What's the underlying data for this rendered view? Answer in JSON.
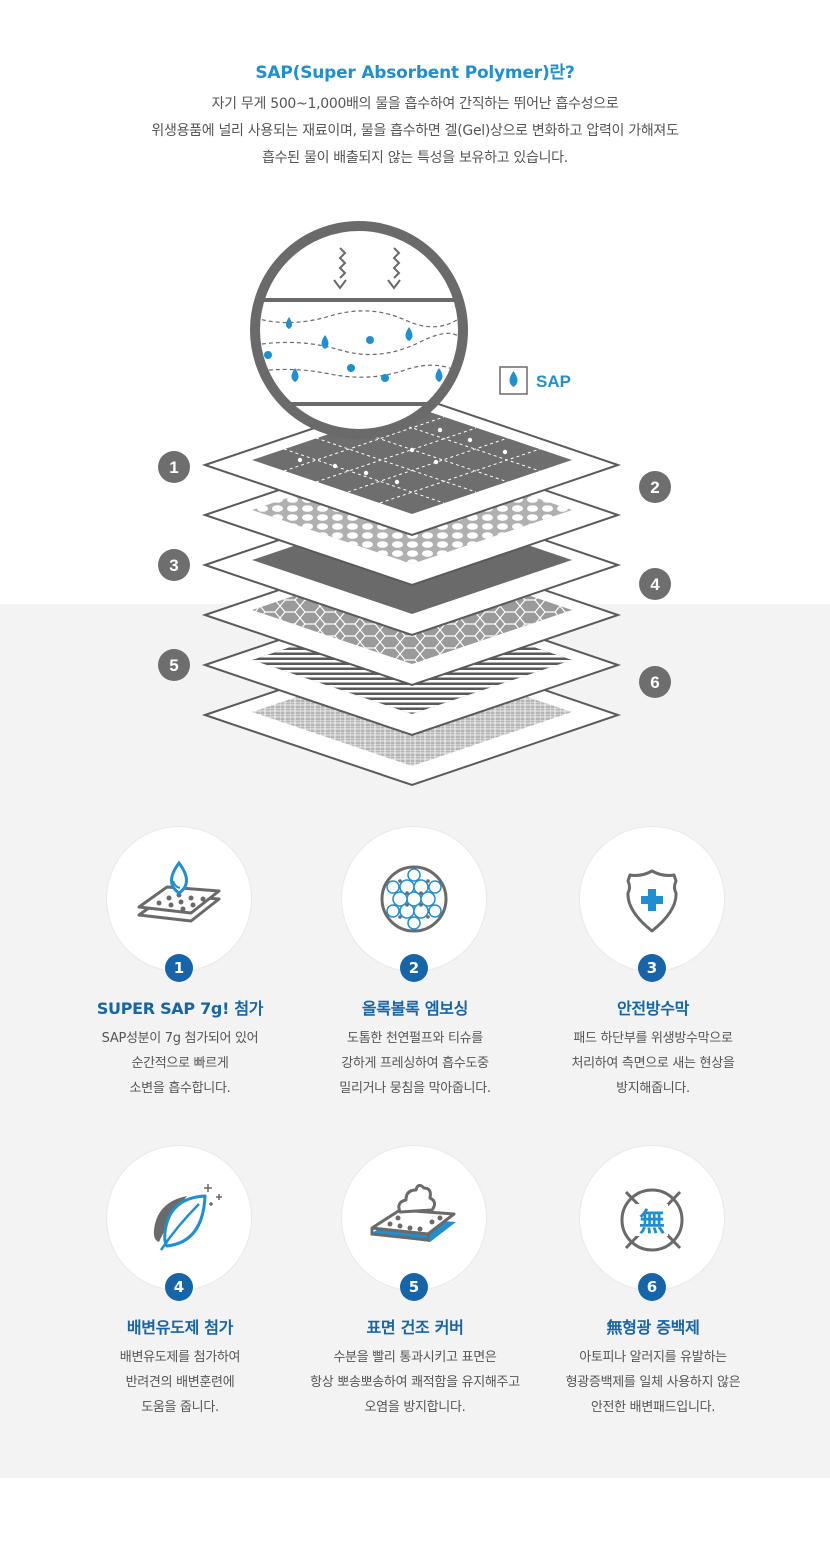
{
  "intro": {
    "title": "SAP(Super Absorbent Polymer)란?",
    "lines": [
      "자기 무게 500~1,000배의 물을 흡수하여 간직하는 뛰어난 흡수성으로",
      "위생용품에 널리 사용되는 재료이며, 물을 흡수하면 겔(Gel)상으로 변화하고 압력이 가해져도",
      "흡수된 물이 배출되지 않는 특성을 보유하고 있습니다."
    ]
  },
  "diagram": {
    "legend_label": "SAP",
    "layer_numbers": [
      "1",
      "2",
      "3",
      "4",
      "5",
      "6"
    ]
  },
  "features": [
    {
      "num": "1",
      "title": "SUPER SAP 7g! 첨가",
      "lines": [
        "SAP성분이 7g 첨가되어 있어",
        "순간적으로 빠르게",
        "소변을 흡수합니다."
      ],
      "icon": "absorbent-pad-icon"
    },
    {
      "num": "2",
      "title": "올록볼록 엠보싱",
      "lines": [
        "도톰한 천연펄프와 티슈를",
        "강하게 프레싱하여 흡수도중",
        "밀리거나 뭉침을 막아줍니다."
      ],
      "icon": "honeycomb-emboss-icon"
    },
    {
      "num": "3",
      "title": "안전방수막",
      "lines": [
        "패드 하단부를 위생방수막으로",
        "처리하여 측면으로 새는 현상을",
        "방지해줍니다."
      ],
      "icon": "shield-plus-icon"
    },
    {
      "num": "4",
      "title": "배변유도제 첨가",
      "lines": [
        "배변유도제를 첨가하여",
        "반려견의 배변훈련에",
        "도움을 줍니다."
      ],
      "icon": "leaf-icon"
    },
    {
      "num": "5",
      "title": "표면 건조 커버",
      "lines": [
        "수분을 빨리 통과시키고 표면은",
        "항상 뽀송뽀송하여 쾌적함을 유지해주고",
        "오염을 방지합니다."
      ],
      "icon": "dry-cover-icon"
    },
    {
      "num": "6",
      "title": "無형광 증백제",
      "lines": [
        "아토피나 알러지를 유발하는",
        "형광증백제를 일체 사용하지 않은",
        "안전한 배변패드입니다."
      ],
      "icon": "no-fluorescent-icon"
    }
  ],
  "colors": {
    "accent": "#1e8fd0",
    "navy": "#1565a8",
    "gray": "#666666",
    "bg": "#f3f3f3"
  }
}
